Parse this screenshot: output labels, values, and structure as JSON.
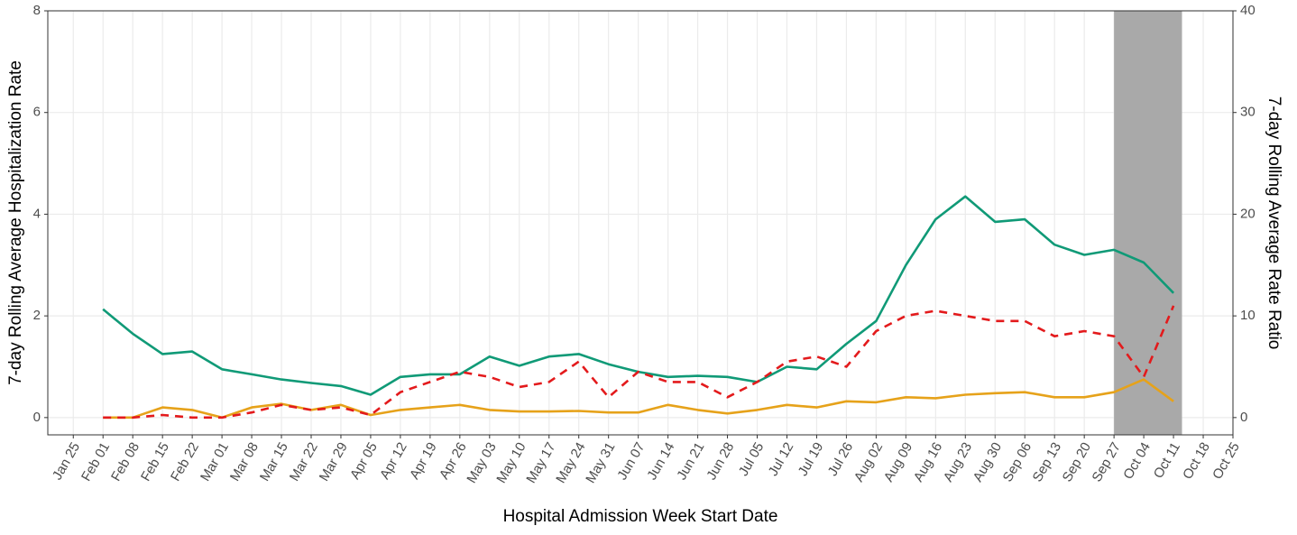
{
  "chart_data": {
    "type": "line",
    "x_label": "Hospital Admission Week Start Date",
    "y_label": "7-day Rolling Average Hospitalization Rate",
    "y2_label": "7-day Rolling Average Rate Ratio",
    "x": [
      "Feb 01",
      "Feb 08",
      "Feb 15",
      "Feb 22",
      "Mar 01",
      "Mar 08",
      "Mar 15",
      "Mar 22",
      "Mar 29",
      "Apr 05",
      "Apr 12",
      "Apr 19",
      "Apr 26",
      "May 03",
      "May 10",
      "May 17",
      "May 24",
      "May 31",
      "Jun 07",
      "Jun 14",
      "Jun 21",
      "Jun 28",
      "Jul 05",
      "Jul 12",
      "Jul 19",
      "Jul 26",
      "Aug 02",
      "Aug 09",
      "Aug 16",
      "Aug 23",
      "Aug 30",
      "Sep 06",
      "Sep 13",
      "Sep 20",
      "Sep 27",
      "Oct 04",
      "Oct 11"
    ],
    "series": [
      {
        "color": "#109a77",
        "style": "solid",
        "values": [
          2.13,
          1.65,
          1.25,
          1.3,
          0.95,
          0.85,
          0.75,
          0.68,
          0.62,
          0.45,
          0.8,
          0.85,
          0.85,
          1.2,
          1.02,
          1.2,
          1.25,
          1.05,
          0.9,
          0.8,
          0.82,
          0.8,
          0.7,
          1.0,
          0.95,
          1.45,
          1.9,
          3.0,
          3.9,
          4.35,
          3.85,
          3.9,
          3.4,
          3.2,
          3.3,
          3.05,
          2.45
        ]
      },
      {
        "color": "#e6a21a",
        "style": "solid",
        "values": [
          0,
          0,
          0.2,
          0.15,
          0,
          0.2,
          0.27,
          0.15,
          0.25,
          0.05,
          0.15,
          0.2,
          0.25,
          0.15,
          0.12,
          0.12,
          0.13,
          0.1,
          0.1,
          0.25,
          0.15,
          0.08,
          0.15,
          0.25,
          0.2,
          0.32,
          0.3,
          0.4,
          0.38,
          0.45,
          0.48,
          0.5,
          0.4,
          0.4,
          0.5,
          0.75,
          0.32
        ]
      },
      {
        "color": "#e31a1c",
        "style": "dashed",
        "axis": "y2",
        "values": [
          0,
          0,
          0.25,
          0,
          0,
          0.5,
          1.25,
          0.75,
          1.0,
          0.25,
          2.5,
          3.5,
          4.5,
          4.0,
          3.0,
          3.5,
          5.5,
          2.0,
          4.5,
          3.5,
          3.5,
          2.0,
          3.5,
          5.5,
          6.0,
          5.0,
          8.5,
          10.0,
          10.5,
          10.0,
          9.5,
          9.5,
          8.0,
          8.5,
          8.0,
          4.0,
          11.0
        ]
      }
    ],
    "xlim": [
      "Jan 19",
      "Oct 25"
    ],
    "xticks": [
      "Jan 25",
      "Feb 01",
      "Feb 08",
      "Feb 15",
      "Feb 22",
      "Mar 01",
      "Mar 08",
      "Mar 15",
      "Mar 22",
      "Mar 29",
      "Apr 05",
      "Apr 12",
      "Apr 19",
      "Apr 26",
      "May 03",
      "May 10",
      "May 17",
      "May 24",
      "May 31",
      "Jun 07",
      "Jun 14",
      "Jun 21",
      "Jun 28",
      "Jul 05",
      "Jul 12",
      "Jul 19",
      "Jul 26",
      "Aug 02",
      "Aug 09",
      "Aug 16",
      "Aug 23",
      "Aug 30",
      "Sep 06",
      "Sep 13",
      "Sep 20",
      "Sep 27",
      "Oct 04",
      "Oct 11",
      "Oct 18",
      "Oct 25"
    ],
    "ylim": [
      -0.34,
      8
    ],
    "yticks": [
      0,
      2,
      4,
      6,
      8
    ],
    "y2lim": [
      -1.7,
      40
    ],
    "y2ticks": [
      0,
      10,
      20,
      30,
      40
    ],
    "highlight": [
      "Sep 27",
      "Oct 13"
    ],
    "highlight_color": "#a9a9a9",
    "grid": true
  }
}
